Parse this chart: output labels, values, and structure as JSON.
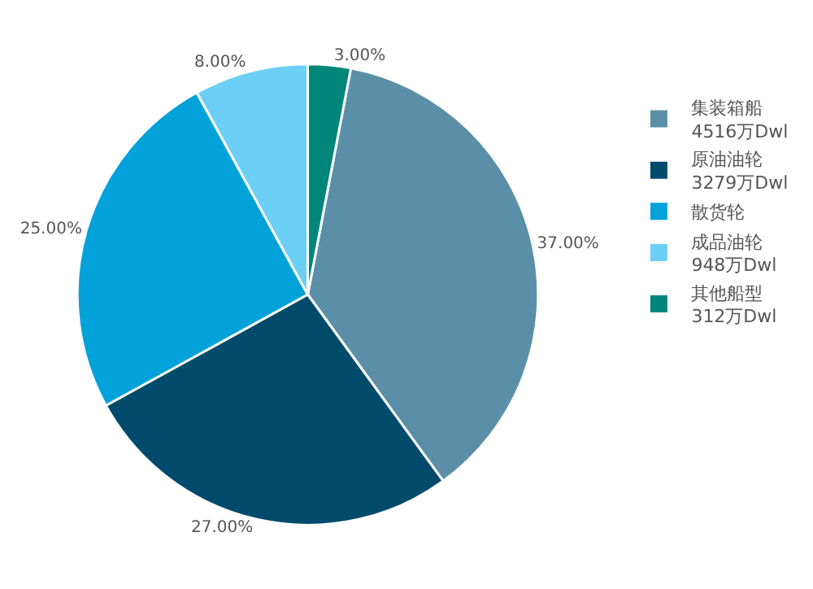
{
  "chart_data": {
    "type": "pie",
    "categories": [
      "集装箱船 4516万Dwl",
      "原油油轮 3279万Dwl",
      "散货轮",
      "成品油轮 948万Dwl",
      "其他船型 312万Dwl"
    ],
    "values": [
      37,
      27,
      25,
      8,
      3
    ],
    "value_labels": [
      "37.00%",
      "27.00%",
      "25.00%",
      "8.00%",
      "3.00%"
    ],
    "colors": [
      "#5b8fa8",
      "#004b6b",
      "#00a2d9",
      "#6ccff6",
      "#00857a"
    ],
    "legend": "right"
  }
}
